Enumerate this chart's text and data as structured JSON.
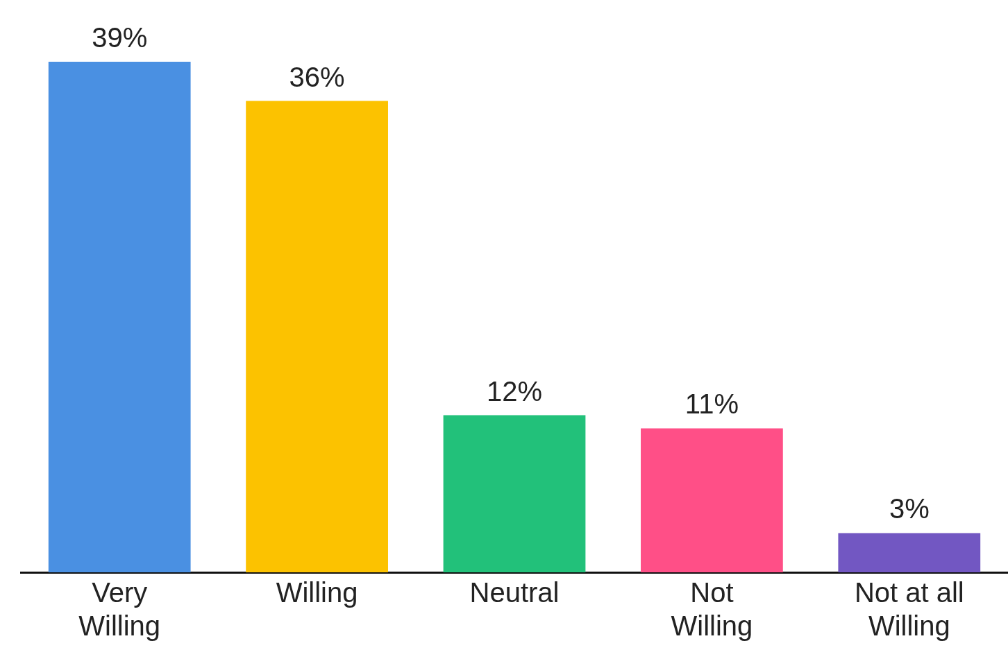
{
  "chart_data": {
    "type": "bar",
    "categories": [
      "Very Willing",
      "Willing",
      "Neutral",
      "Not Willing",
      "Not at all Willing"
    ],
    "values": [
      39,
      36,
      12,
      11,
      3
    ],
    "colors": [
      "#4a90e2",
      "#fcc200",
      "#22c17a",
      "#ff4f87",
      "#7257c2"
    ],
    "value_labels": [
      "39%",
      "36%",
      "12%",
      "11%",
      "3%"
    ],
    "grid": false,
    "legend": false
  }
}
